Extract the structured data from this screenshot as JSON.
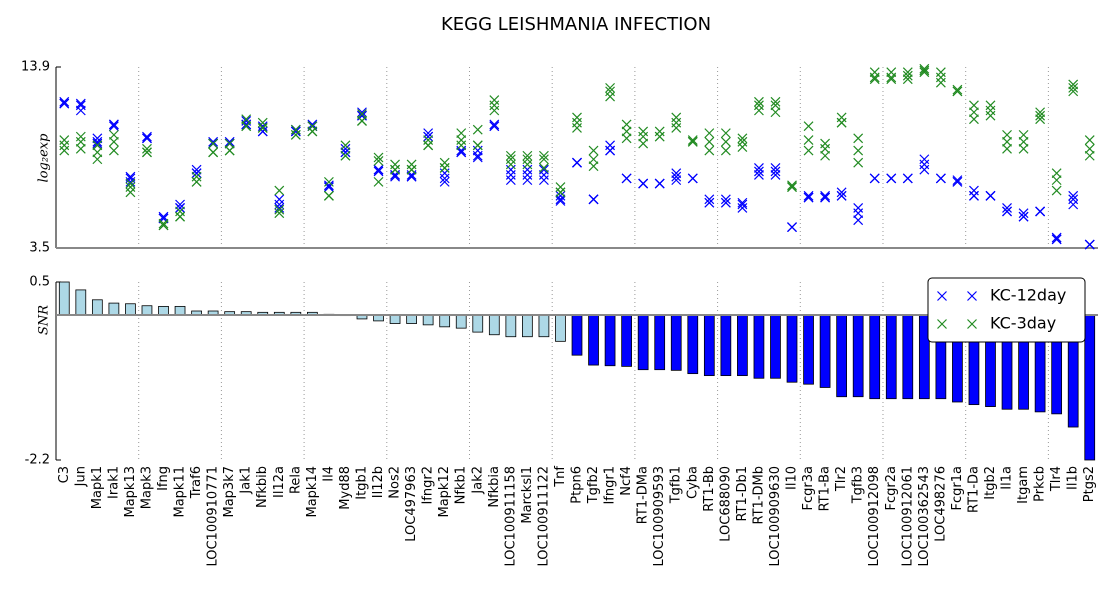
{
  "chart_data": [
    {
      "type": "scatter",
      "title": "KEGG LEISHMANIA INFECTION",
      "ylabel": "log₂exp",
      "ylim": [
        3.5,
        13.9
      ],
      "yticks": [
        3.5,
        13.9
      ],
      "legend": "upper right",
      "series": [
        {
          "name": "KC-12day",
          "color": "#0000ff",
          "values": [
            [
              11.9,
              11.8,
              11.8
            ],
            [
              11.8,
              11.7,
              11.4
            ],
            [
              9.8,
              9.6,
              9.5
            ],
            [
              10.6,
              10.6,
              10.5
            ],
            [
              7.6,
              7.5,
              7.3
            ],
            [
              9.9,
              9.8,
              9.8
            ],
            [
              5.3,
              5.2,
              5.2
            ],
            [
              6.0,
              5.8,
              5.8
            ],
            [
              8.0,
              7.8,
              7.8
            ],
            [
              9.6,
              9.5,
              9.5
            ],
            [
              9.6,
              9.5,
              9.5
            ],
            [
              10.8,
              10.6,
              10.6
            ],
            [
              10.5,
              10.2,
              10.2
            ],
            [
              6.3,
              6.0,
              5.8
            ],
            [
              10.3,
              10.2,
              10.2
            ],
            [
              10.6,
              10.5,
              10.5
            ],
            [
              7.1,
              7.0,
              7.0
            ],
            [
              9.2,
              9.0,
              9.0
            ],
            [
              11.3,
              11.1,
              11.1
            ],
            [
              8.0,
              8.0,
              7.9
            ],
            [
              7.7,
              7.7,
              7.6
            ],
            [
              7.7,
              7.6,
              7.6
            ],
            [
              10.1,
              9.9,
              9.9
            ],
            [
              7.8,
              7.5,
              7.3
            ],
            [
              9.1,
              9.0,
              9.0
            ],
            [
              9.1,
              8.8,
              8.7
            ],
            [
              10.6,
              10.5,
              10.5
            ],
            [
              8.0,
              7.7,
              7.4
            ],
            [
              8.0,
              7.7,
              7.4
            ],
            [
              8.0,
              7.7,
              7.4
            ],
            [
              6.5,
              6.3,
              6.2
            ],
            [
              8.4,
              8.4,
              8.4
            ],
            [
              6.3,
              6.3,
              6.3
            ],
            [
              9.4,
              9.1,
              9.1
            ],
            [
              7.5,
              7.5,
              7.5
            ],
            [
              7.2,
              7.2,
              7.2
            ],
            [
              7.2,
              7.2,
              7.2
            ],
            [
              7.8,
              7.6,
              7.4
            ],
            [
              7.5,
              7.5,
              7.5
            ],
            [
              6.3,
              6.1,
              6.1
            ],
            [
              6.3,
              6.1,
              6.1
            ],
            [
              6.1,
              6.0,
              5.8
            ],
            [
              8.1,
              7.9,
              7.7
            ],
            [
              8.1,
              7.9,
              7.7
            ],
            [
              4.7,
              4.7,
              4.7
            ],
            [
              6.5,
              6.4,
              6.4
            ],
            [
              6.5,
              6.4,
              6.4
            ],
            [
              6.7,
              6.5,
              6.5
            ],
            [
              5.8,
              5.5,
              5.1
            ],
            [
              7.5,
              7.5,
              7.5
            ],
            [
              7.5,
              7.5,
              7.5
            ],
            [
              7.5,
              7.5,
              7.5
            ],
            [
              8.6,
              8.3,
              8.0
            ],
            [
              7.5,
              7.5,
              7.5
            ],
            [
              7.4,
              7.3,
              7.3
            ],
            [
              6.8,
              6.5,
              6.5
            ],
            [
              6.5,
              6.5,
              6.5
            ],
            [
              5.8,
              5.6,
              5.6
            ],
            [
              5.5,
              5.3,
              5.3
            ],
            [
              5.6,
              5.6,
              5.6
            ],
            [
              4.1,
              4.0,
              4.0
            ],
            [
              6.5,
              6.3,
              6.0
            ],
            [
              3.7,
              3.7,
              3.7
            ]
          ]
        },
        {
          "name": "KC-3day",
          "color": "#228b22",
          "values": [
            [
              9.7,
              9.4,
              9.1
            ],
            [
              9.9,
              9.6,
              9.2
            ],
            [
              9.4,
              9.0,
              8.6
            ],
            [
              10.0,
              9.6,
              9.1
            ],
            [
              7.2,
              7.0,
              6.7
            ],
            [
              9.2,
              9.0,
              9.0
            ],
            [
              4.9,
              4.8,
              4.8
            ],
            [
              5.6,
              5.3,
              5.3
            ],
            [
              7.6,
              7.3,
              7.3
            ],
            [
              9.5,
              9.0,
              9.0
            ],
            [
              9.5,
              9.1,
              9.1
            ],
            [
              10.9,
              10.5,
              10.5
            ],
            [
              10.7,
              10.4,
              10.4
            ],
            [
              6.8,
              5.7,
              5.5
            ],
            [
              10.3,
              10.0,
              10.0
            ],
            [
              10.5,
              10.2,
              10.2
            ],
            [
              7.3,
              6.5,
              6.5
            ],
            [
              9.4,
              8.8,
              8.8
            ],
            [
              11.2,
              10.8,
              10.8
            ],
            [
              8.7,
              8.5,
              7.3
            ],
            [
              8.3,
              8.0,
              8.0
            ],
            [
              8.3,
              8.0,
              8.0
            ],
            [
              9.7,
              9.4,
              9.4
            ],
            [
              8.4,
              8.1,
              8.1
            ],
            [
              10.1,
              9.7,
              9.4
            ],
            [
              10.3,
              9.4,
              9.4
            ],
            [
              12.0,
              11.7,
              11.4
            ],
            [
              8.8,
              8.6,
              8.3
            ],
            [
              8.8,
              8.6,
              8.3
            ],
            [
              8.8,
              8.6,
              8.1
            ],
            [
              7.0,
              6.7,
              6.7
            ],
            [
              11.0,
              10.7,
              10.4
            ],
            [
              9.1,
              8.6,
              8.2
            ],
            [
              12.7,
              12.5,
              12.2
            ],
            [
              10.6,
              10.2,
              9.8
            ],
            [
              10.2,
              9.9,
              9.5
            ],
            [
              10.2,
              9.9,
              9.9
            ],
            [
              11.0,
              10.7,
              10.4
            ],
            [
              9.7,
              9.6,
              9.6
            ],
            [
              10.1,
              9.6,
              9.1
            ],
            [
              10.1,
              9.6,
              9.1
            ],
            [
              9.8,
              9.6,
              9.3
            ],
            [
              11.9,
              11.7,
              11.4
            ],
            [
              11.9,
              11.7,
              11.3
            ],
            [
              7.1,
              7.0,
              7.0
            ],
            [
              10.5,
              9.7,
              9.1
            ],
            [
              9.5,
              9.2,
              8.8
            ],
            [
              11.0,
              10.7,
              10.7
            ],
            [
              9.8,
              9.1,
              8.4
            ],
            [
              13.6,
              13.3,
              13.2
            ],
            [
              13.6,
              13.3,
              13.2
            ],
            [
              13.6,
              13.4,
              13.2
            ],
            [
              13.8,
              13.7,
              13.6
            ],
            [
              13.6,
              13.3,
              13.0
            ],
            [
              12.6,
              12.5,
              12.5
            ],
            [
              11.7,
              11.3,
              10.9
            ],
            [
              11.7,
              11.4,
              11.1
            ],
            [
              10.0,
              9.6,
              9.2
            ],
            [
              10.0,
              9.6,
              9.2
            ],
            [
              11.3,
              11.1,
              10.9
            ],
            [
              7.8,
              7.4,
              6.8
            ],
            [
              12.9,
              12.7,
              12.5
            ],
            [
              9.7,
              9.2,
              8.8
            ]
          ]
        }
      ]
    },
    {
      "type": "bar",
      "ylabel": "SNR",
      "ylim": [
        -2.2,
        0.5
      ],
      "yticks": [
        -2.2,
        0.5
      ],
      "categories": [
        "C3",
        "Jun",
        "Mapk1",
        "Irak1",
        "Mapk13",
        "Mapk3",
        "Ifng",
        "Mapk11",
        "Traf6",
        "LOC100910771",
        "Map3k7",
        "Jak1",
        "Nfkbib",
        "Il12a",
        "Rela",
        "Mapk14",
        "Il4",
        "Myd88",
        "Itgb1",
        "Il12b",
        "Nos2",
        "LOC497963",
        "Ifngr2",
        "Mapk12",
        "Nfkb1",
        "Jak2",
        "Nfkbia",
        "LOC100911158",
        "Marcksl1",
        "LOC100911122",
        "Tnf",
        "Ptpn6",
        "Tgfb2",
        "Ifngr1",
        "Ncf4",
        "RT1-DMa",
        "LOC100909593",
        "Tgfb1",
        "Cyba",
        "RT1-Bb",
        "LOC688090",
        "RT1-Db1",
        "RT1-DMb",
        "LOC100909630",
        "Il10",
        "Fcgr3a",
        "RT1-Ba",
        "Tlr2",
        "Tgfb3",
        "LOC100912098",
        "Fcgr2a",
        "LOC100912061",
        "LOC100362543",
        "LOC498276",
        "Fcgr1a",
        "RT1-Da",
        "Itgb2",
        "Il1a",
        "Itgam",
        "Prkcb",
        "Tlr4",
        "Il1b",
        "Ptgs2"
      ],
      "values": [
        0.5,
        0.38,
        0.23,
        0.18,
        0.17,
        0.14,
        0.13,
        0.13,
        0.06,
        0.06,
        0.05,
        0.05,
        0.04,
        0.04,
        0.04,
        0.04,
        0.01,
        -0.01,
        -0.06,
        -0.09,
        -0.13,
        -0.13,
        -0.15,
        -0.18,
        -0.2,
        -0.26,
        -0.3,
        -0.33,
        -0.33,
        -0.33,
        -0.4,
        -0.61,
        -0.76,
        -0.77,
        -0.78,
        -0.83,
        -0.83,
        -0.84,
        -0.89,
        -0.92,
        -0.92,
        -0.92,
        -0.96,
        -0.96,
        -1.02,
        -1.05,
        -1.1,
        -1.24,
        -1.24,
        -1.27,
        -1.27,
        -1.27,
        -1.27,
        -1.27,
        -1.32,
        -1.36,
        -1.39,
        -1.43,
        -1.43,
        -1.47,
        -1.5,
        -1.7,
        -2.2
      ],
      "colors": [
        "#add8e6",
        "#add8e6",
        "#add8e6",
        "#add8e6",
        "#add8e6",
        "#add8e6",
        "#add8e6",
        "#add8e6",
        "#add8e6",
        "#add8e6",
        "#add8e6",
        "#add8e6",
        "#add8e6",
        "#add8e6",
        "#add8e6",
        "#add8e6",
        "#add8e6",
        "#add8e6",
        "#add8e6",
        "#add8e6",
        "#add8e6",
        "#add8e6",
        "#add8e6",
        "#add8e6",
        "#add8e6",
        "#add8e6",
        "#add8e6",
        "#add8e6",
        "#add8e6",
        "#add8e6",
        "#add8e6",
        "#0000ff",
        "#0000ff",
        "#0000ff",
        "#0000ff",
        "#0000ff",
        "#0000ff",
        "#0000ff",
        "#0000ff",
        "#0000ff",
        "#0000ff",
        "#0000ff",
        "#0000ff",
        "#0000ff",
        "#0000ff",
        "#0000ff",
        "#0000ff",
        "#0000ff",
        "#0000ff",
        "#0000ff",
        "#0000ff",
        "#0000ff",
        "#0000ff",
        "#0000ff",
        "#0000ff",
        "#0000ff",
        "#0000ff",
        "#0000ff",
        "#0000ff",
        "#0000ff",
        "#0000ff",
        "#0000ff",
        "#0000ff"
      ]
    }
  ]
}
